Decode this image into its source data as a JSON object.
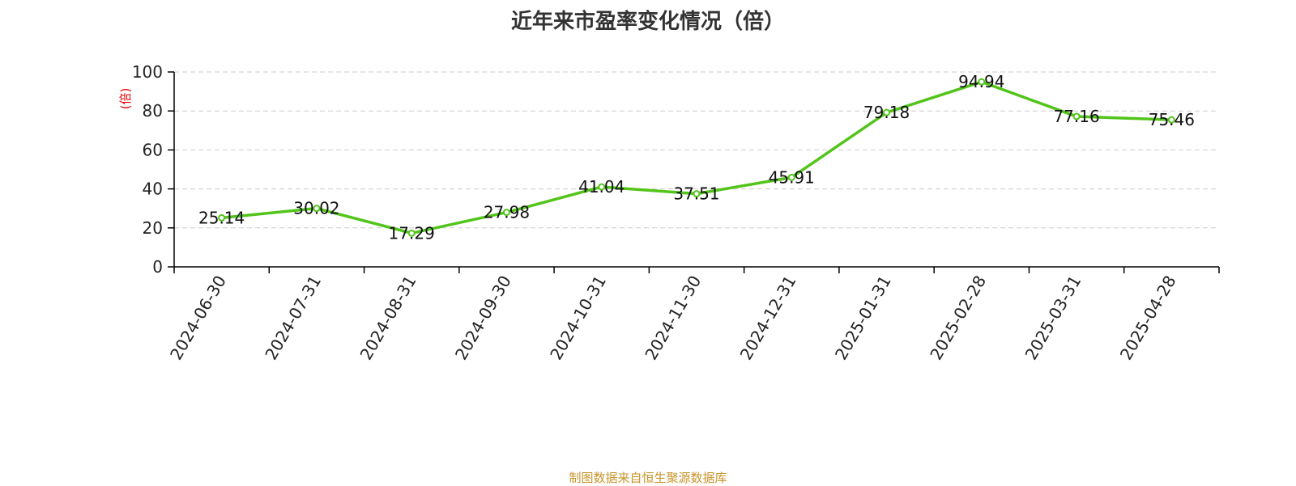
{
  "colors": {
    "line": "#52c41a",
    "ylabel": "#e60000",
    "source": "#c8942a"
  },
  "title": "近年来市盈率变化情况（倍）",
  "source_note": "制图数据来自恒生聚源数据库",
  "chart_data": {
    "type": "line",
    "title": "近年来市盈率变化情况（倍）",
    "xlabel": "",
    "ylabel": "(倍)",
    "ylim": [
      0,
      100
    ],
    "yticks": [
      0,
      20,
      40,
      60,
      80,
      100
    ],
    "grid": true,
    "categories": [
      "2024-06-30",
      "2024-07-31",
      "2024-08-31",
      "2024-09-30",
      "2024-10-31",
      "2024-11-30",
      "2024-12-31",
      "2025-01-31",
      "2025-02-28",
      "2025-03-31",
      "2025-04-28"
    ],
    "series": [
      {
        "values": [
          25.14,
          30.02,
          17.29,
          27.98,
          41.04,
          37.51,
          45.91,
          79.18,
          94.94,
          77.16,
          75.46
        ],
        "labels": [
          "25.14",
          "30.02",
          "17.29",
          "27.98",
          "41.04",
          "37.51",
          "45.91",
          "79.18",
          "94.94",
          "77.16",
          "75.46"
        ]
      }
    ]
  }
}
